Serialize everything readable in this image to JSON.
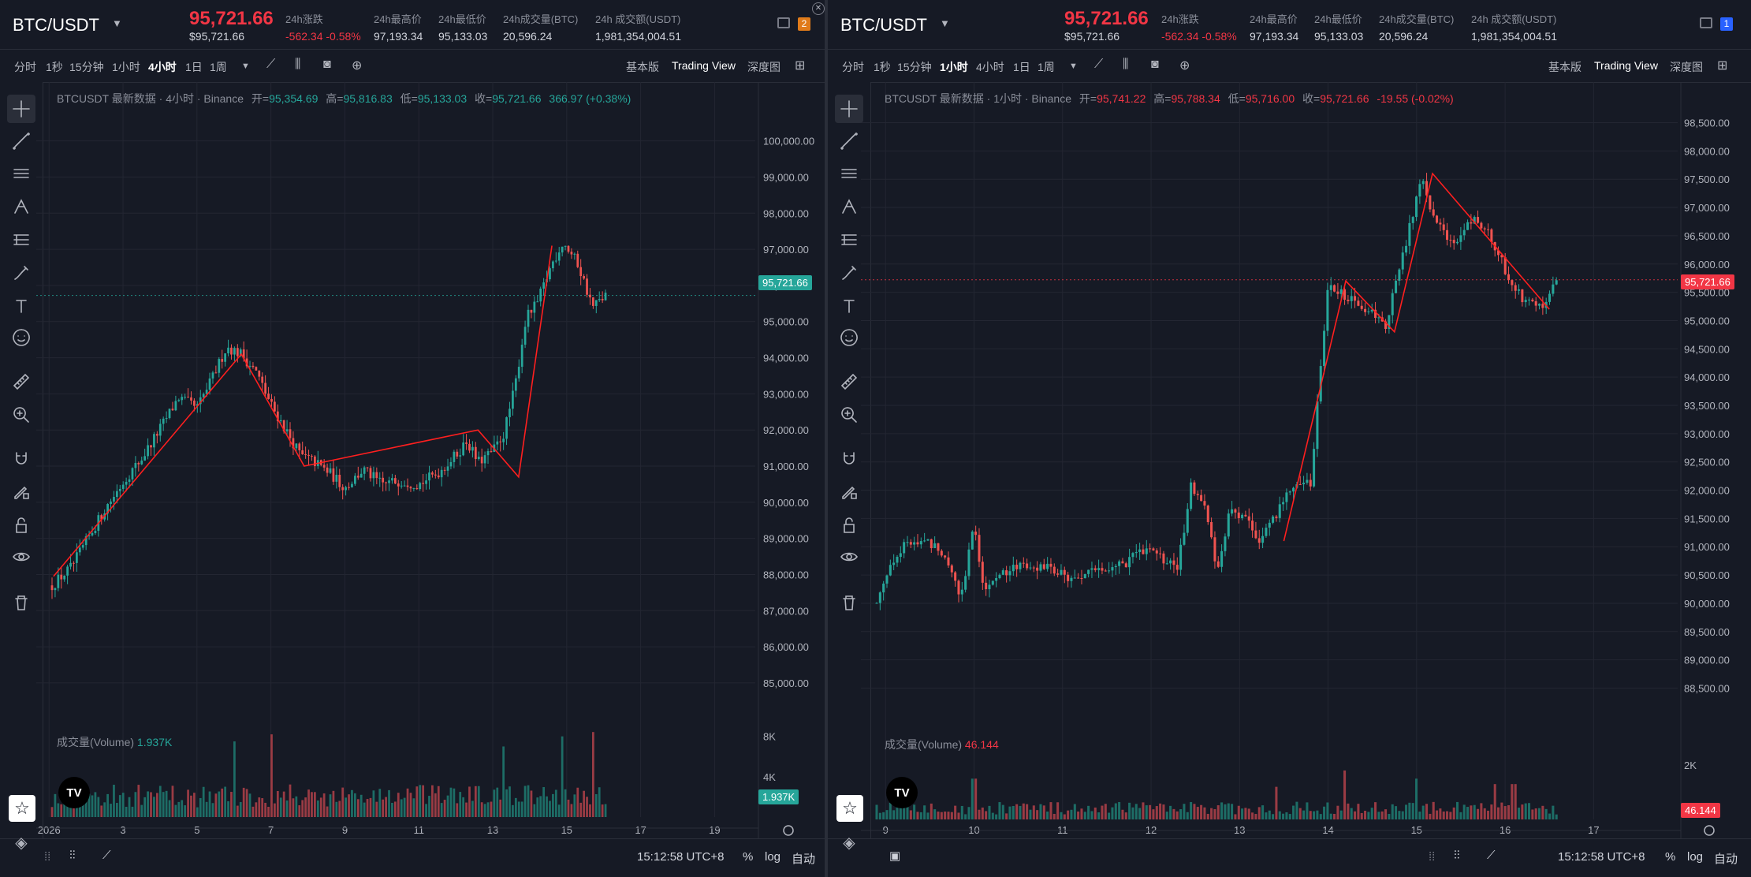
{
  "panels": [
    {
      "symbol": "BTC/USDT",
      "last_price": "95,721.66",
      "last_price_sub": "$95,721.66",
      "stats": [
        {
          "label": "24h涨跌",
          "value": "-562.34 -0.58%",
          "color": "#f23645"
        },
        {
          "label": "24h最高价",
          "value": "97,193.34",
          "color": "#d1d4dc"
        },
        {
          "label": "24h最低价",
          "value": "95,133.03",
          "color": "#d1d4dc"
        },
        {
          "label": "24h成交量(BTC)",
          "value": "20,596.24",
          "color": "#d1d4dc"
        },
        {
          "label": "24h 成交额(USDT)",
          "value": "1,981,354,004.51",
          "color": "#d1d4dc"
        }
      ],
      "badge": "2",
      "badge_color": "#e07b1a",
      "timeframes": [
        "分时",
        "1秒",
        "15分钟",
        "1小时",
        "4小时",
        "1日",
        "1周"
      ],
      "active_timeframe": "4小时",
      "views": [
        "基本版",
        "Trading View",
        "深度图"
      ],
      "active_view": "Trading View",
      "legend": {
        "title": "BTCUSDT 最新数据 · 4小时 · Binance",
        "open_label": "开=",
        "open": "95,354.69",
        "high_label": "高=",
        "high": "95,816.83",
        "low_label": "低=",
        "low": "95,133.03",
        "close_label": "收=",
        "close": "95,721.66",
        "change": "366.97 (+0.38%)",
        "color": "#26a69a"
      },
      "volume_label": "成交量(Volume)",
      "volume_value": "1.937K",
      "volume_color": "#26a69a",
      "price_tag": "95,721.66",
      "price_tag_color": "#26a69a",
      "volume_tag": "1.937K",
      "time": "15:12:58 UTC+8",
      "bottom_opts": [
        "%",
        "log",
        "自动"
      ],
      "chart_data": {
        "type": "candlestick",
        "y_ticks": [
          "100,000.00",
          "99,000.00",
          "98,000.00",
          "97,000.00",
          "96,000.00",
          "95,000.00",
          "94,000.00",
          "93,000.00",
          "92,000.00",
          "91,000.00",
          "90,000.00",
          "89,000.00",
          "88,000.00",
          "87,000.00",
          "86,000.00",
          "85,000.00"
        ],
        "ylim": [
          84300,
          100800
        ],
        "x_ticks": [
          "2026",
          "3",
          "5",
          "7",
          "9",
          "11",
          "13",
          "15",
          "17",
          "19"
        ],
        "x_tick_values": [
          1,
          3,
          5,
          7,
          9,
          11,
          13,
          15,
          17,
          19
        ],
        "xlim": [
          1.08,
          20.1
        ],
        "vol_ticks": [
          "8K",
          "4K"
        ],
        "vol_max": 8600,
        "close_level": 95721.66,
        "anchors": [
          [
            1.08,
            87700
          ],
          [
            1.6,
            88200
          ],
          [
            2.0,
            88900
          ],
          [
            2.5,
            89800
          ],
          [
            3.1,
            90700
          ],
          [
            3.5,
            91200
          ],
          [
            4.1,
            92200
          ],
          [
            4.5,
            92900
          ],
          [
            5.0,
            92600
          ],
          [
            5.4,
            93400
          ],
          [
            5.8,
            94300
          ],
          [
            6.2,
            94100
          ],
          [
            6.6,
            93600
          ],
          [
            7.0,
            92700
          ],
          [
            7.4,
            92000
          ],
          [
            7.8,
            91300
          ],
          [
            8.2,
            91100
          ],
          [
            8.6,
            90800
          ],
          [
            9.0,
            90400
          ],
          [
            9.5,
            90900
          ],
          [
            10.0,
            90500
          ],
          [
            10.5,
            90600
          ],
          [
            11.0,
            90500
          ],
          [
            11.5,
            90800
          ],
          [
            12.0,
            91300
          ],
          [
            12.3,
            91700
          ],
          [
            12.6,
            91100
          ],
          [
            13.0,
            91400
          ],
          [
            13.3,
            91900
          ],
          [
            13.6,
            93200
          ],
          [
            13.9,
            95100
          ],
          [
            14.2,
            95500
          ],
          [
            14.6,
            96600
          ],
          [
            14.9,
            97200
          ],
          [
            15.3,
            96600
          ],
          [
            15.7,
            95400
          ],
          [
            16.05,
            95721
          ]
        ],
        "zigzag": [
          [
            1.12,
            87950
          ],
          [
            6.2,
            94100
          ],
          [
            7.9,
            91000
          ],
          [
            12.6,
            92000
          ],
          [
            13.7,
            90700
          ],
          [
            14.6,
            97100
          ]
        ],
        "vol_spikes": [
          [
            7.0,
            8200
          ],
          [
            13.3,
            7000
          ],
          [
            14.9,
            8000
          ],
          [
            15.7,
            8500
          ],
          [
            6.0,
            7500
          ]
        ]
      }
    },
    {
      "symbol": "BTC/USDT",
      "last_price": "95,721.66",
      "last_price_sub": "$95,721.66",
      "stats": [
        {
          "label": "24h涨跌",
          "value": "-562.34 -0.58%",
          "color": "#f23645"
        },
        {
          "label": "24h最高价",
          "value": "97,193.34",
          "color": "#d1d4dc"
        },
        {
          "label": "24h最低价",
          "value": "95,133.03",
          "color": "#d1d4dc"
        },
        {
          "label": "24h成交量(BTC)",
          "value": "20,596.24",
          "color": "#d1d4dc"
        },
        {
          "label": "24h 成交额(USDT)",
          "value": "1,981,354,004.51",
          "color": "#d1d4dc"
        }
      ],
      "badge": "1",
      "badge_color": "#2962ff",
      "timeframes": [
        "分时",
        "1秒",
        "15分钟",
        "1小时",
        "4小时",
        "1日",
        "1周"
      ],
      "active_timeframe": "1小时",
      "views": [
        "基本版",
        "Trading View",
        "深度图"
      ],
      "active_view": "Trading View",
      "legend": {
        "title": "BTCUSDT 最新数据 · 1小时 · Binance",
        "open_label": "开=",
        "open": "95,741.22",
        "high_label": "高=",
        "high": "95,788.34",
        "low_label": "低=",
        "low": "95,716.00",
        "close_label": "收=",
        "close": "95,721.66",
        "change": "-19.55 (-0.02%)",
        "color": "#f23645"
      },
      "volume_label": "成交量(Volume)",
      "volume_value": "46.144",
      "volume_color": "#f23645",
      "price_tag": "95,721.66",
      "price_tag_color": "#f23645",
      "volume_tag": "46.144",
      "time": "15:12:58 UTC+8",
      "bottom_opts": [
        "%",
        "log",
        "自动"
      ],
      "chart_data": {
        "type": "candlestick",
        "y_ticks": [
          "98,500.00",
          "98,000.00",
          "97,500.00",
          "97,000.00",
          "96,500.00",
          "96,000.00",
          "95,500.00",
          "95,000.00",
          "94,500.00",
          "94,000.00",
          "93,500.00",
          "93,000.00",
          "92,500.00",
          "92,000.00",
          "91,500.00",
          "91,000.00",
          "90,500.00",
          "90,000.00",
          "89,500.00",
          "89,000.00",
          "88,500.00"
        ],
        "ylim": [
          88200,
          98800
        ],
        "x_ticks": [
          "9",
          "10",
          "11",
          "12",
          "13",
          "14",
          "15",
          "16",
          "17"
        ],
        "x_tick_values": [
          9,
          10,
          11,
          12,
          13,
          14,
          15,
          16,
          17
        ],
        "xlim": [
          8.9,
          17.95
        ],
        "vol_ticks": [
          "2K"
        ],
        "vol_max": 2900,
        "close_level": 95721.66,
        "anchors": [
          [
            8.9,
            90000
          ],
          [
            9.05,
            90700
          ],
          [
            9.2,
            91000
          ],
          [
            9.4,
            91100
          ],
          [
            9.6,
            91000
          ],
          [
            9.75,
            90600
          ],
          [
            9.85,
            90100
          ],
          [
            10.0,
            91400
          ],
          [
            10.1,
            90300
          ],
          [
            10.3,
            90500
          ],
          [
            10.6,
            90700
          ],
          [
            10.9,
            90600
          ],
          [
            11.1,
            90400
          ],
          [
            11.4,
            90600
          ],
          [
            11.7,
            90700
          ],
          [
            11.95,
            91000
          ],
          [
            12.1,
            90800
          ],
          [
            12.3,
            90600
          ],
          [
            12.45,
            92100
          ],
          [
            12.6,
            91800
          ],
          [
            12.75,
            90500
          ],
          [
            12.9,
            91700
          ],
          [
            13.1,
            91400
          ],
          [
            13.25,
            91100
          ],
          [
            13.45,
            91700
          ],
          [
            13.6,
            92100
          ],
          [
            13.8,
            92100
          ],
          [
            14.0,
            95700
          ],
          [
            14.2,
            95400
          ],
          [
            14.45,
            95200
          ],
          [
            14.65,
            94900
          ],
          [
            14.85,
            96200
          ],
          [
            15.05,
            97500
          ],
          [
            15.2,
            96800
          ],
          [
            15.4,
            96300
          ],
          [
            15.6,
            96800
          ],
          [
            15.8,
            96600
          ],
          [
            16.0,
            95900
          ],
          [
            16.2,
            95400
          ],
          [
            16.45,
            95300
          ],
          [
            16.58,
            95721
          ]
        ],
        "zigzag": [
          [
            13.5,
            91100
          ],
          [
            14.2,
            95700
          ],
          [
            14.75,
            94800
          ],
          [
            15.18,
            97600
          ],
          [
            16.5,
            95200
          ]
        ],
        "vol_spikes": [
          [
            10.0,
            1500
          ],
          [
            13.4,
            1200
          ],
          [
            14.2,
            1800
          ],
          [
            15.0,
            1500
          ],
          [
            15.9,
            1300
          ],
          [
            16.1,
            1300
          ]
        ]
      }
    }
  ]
}
